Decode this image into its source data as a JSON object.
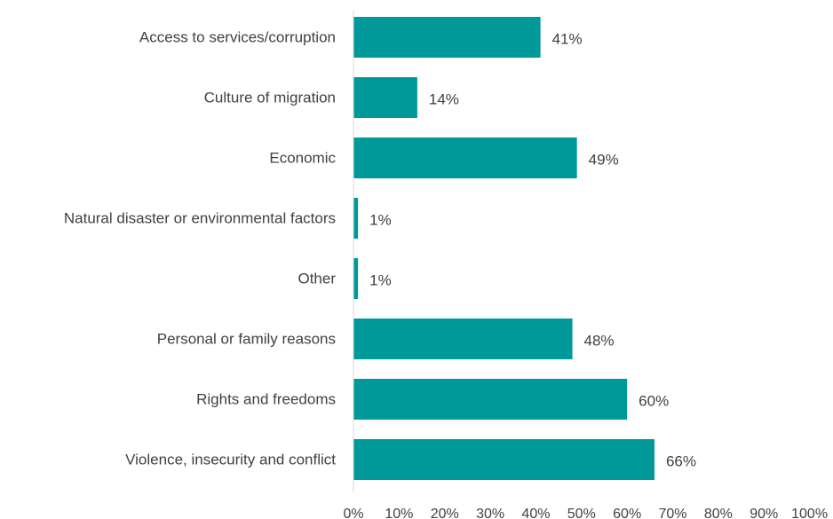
{
  "chart_data": {
    "type": "bar",
    "orientation": "horizontal",
    "title": "",
    "xlabel": "",
    "ylabel": "",
    "categories": [
      "Access to services/corruption",
      "Culture of migration",
      "Economic",
      "Natural disaster or environmental factors",
      "Other",
      "Personal or family reasons",
      "Rights and freedoms",
      "Violence, insecurity and conflict"
    ],
    "values": [
      41,
      14,
      49,
      1,
      1,
      48,
      60,
      66
    ],
    "value_labels": [
      "41%",
      "14%",
      "49%",
      "1%",
      "1%",
      "48%",
      "60%",
      "66%"
    ],
    "xlim": [
      0,
      100
    ],
    "x_ticks": [
      0,
      10,
      20,
      30,
      40,
      50,
      60,
      70,
      80,
      90,
      100
    ],
    "x_tick_labels": [
      "0%",
      "10%",
      "20%",
      "30%",
      "40%",
      "50%",
      "60%",
      "70%",
      "80%",
      "90%",
      "100%"
    ],
    "bar_color": "#009999",
    "grid": false,
    "legend": "none"
  }
}
